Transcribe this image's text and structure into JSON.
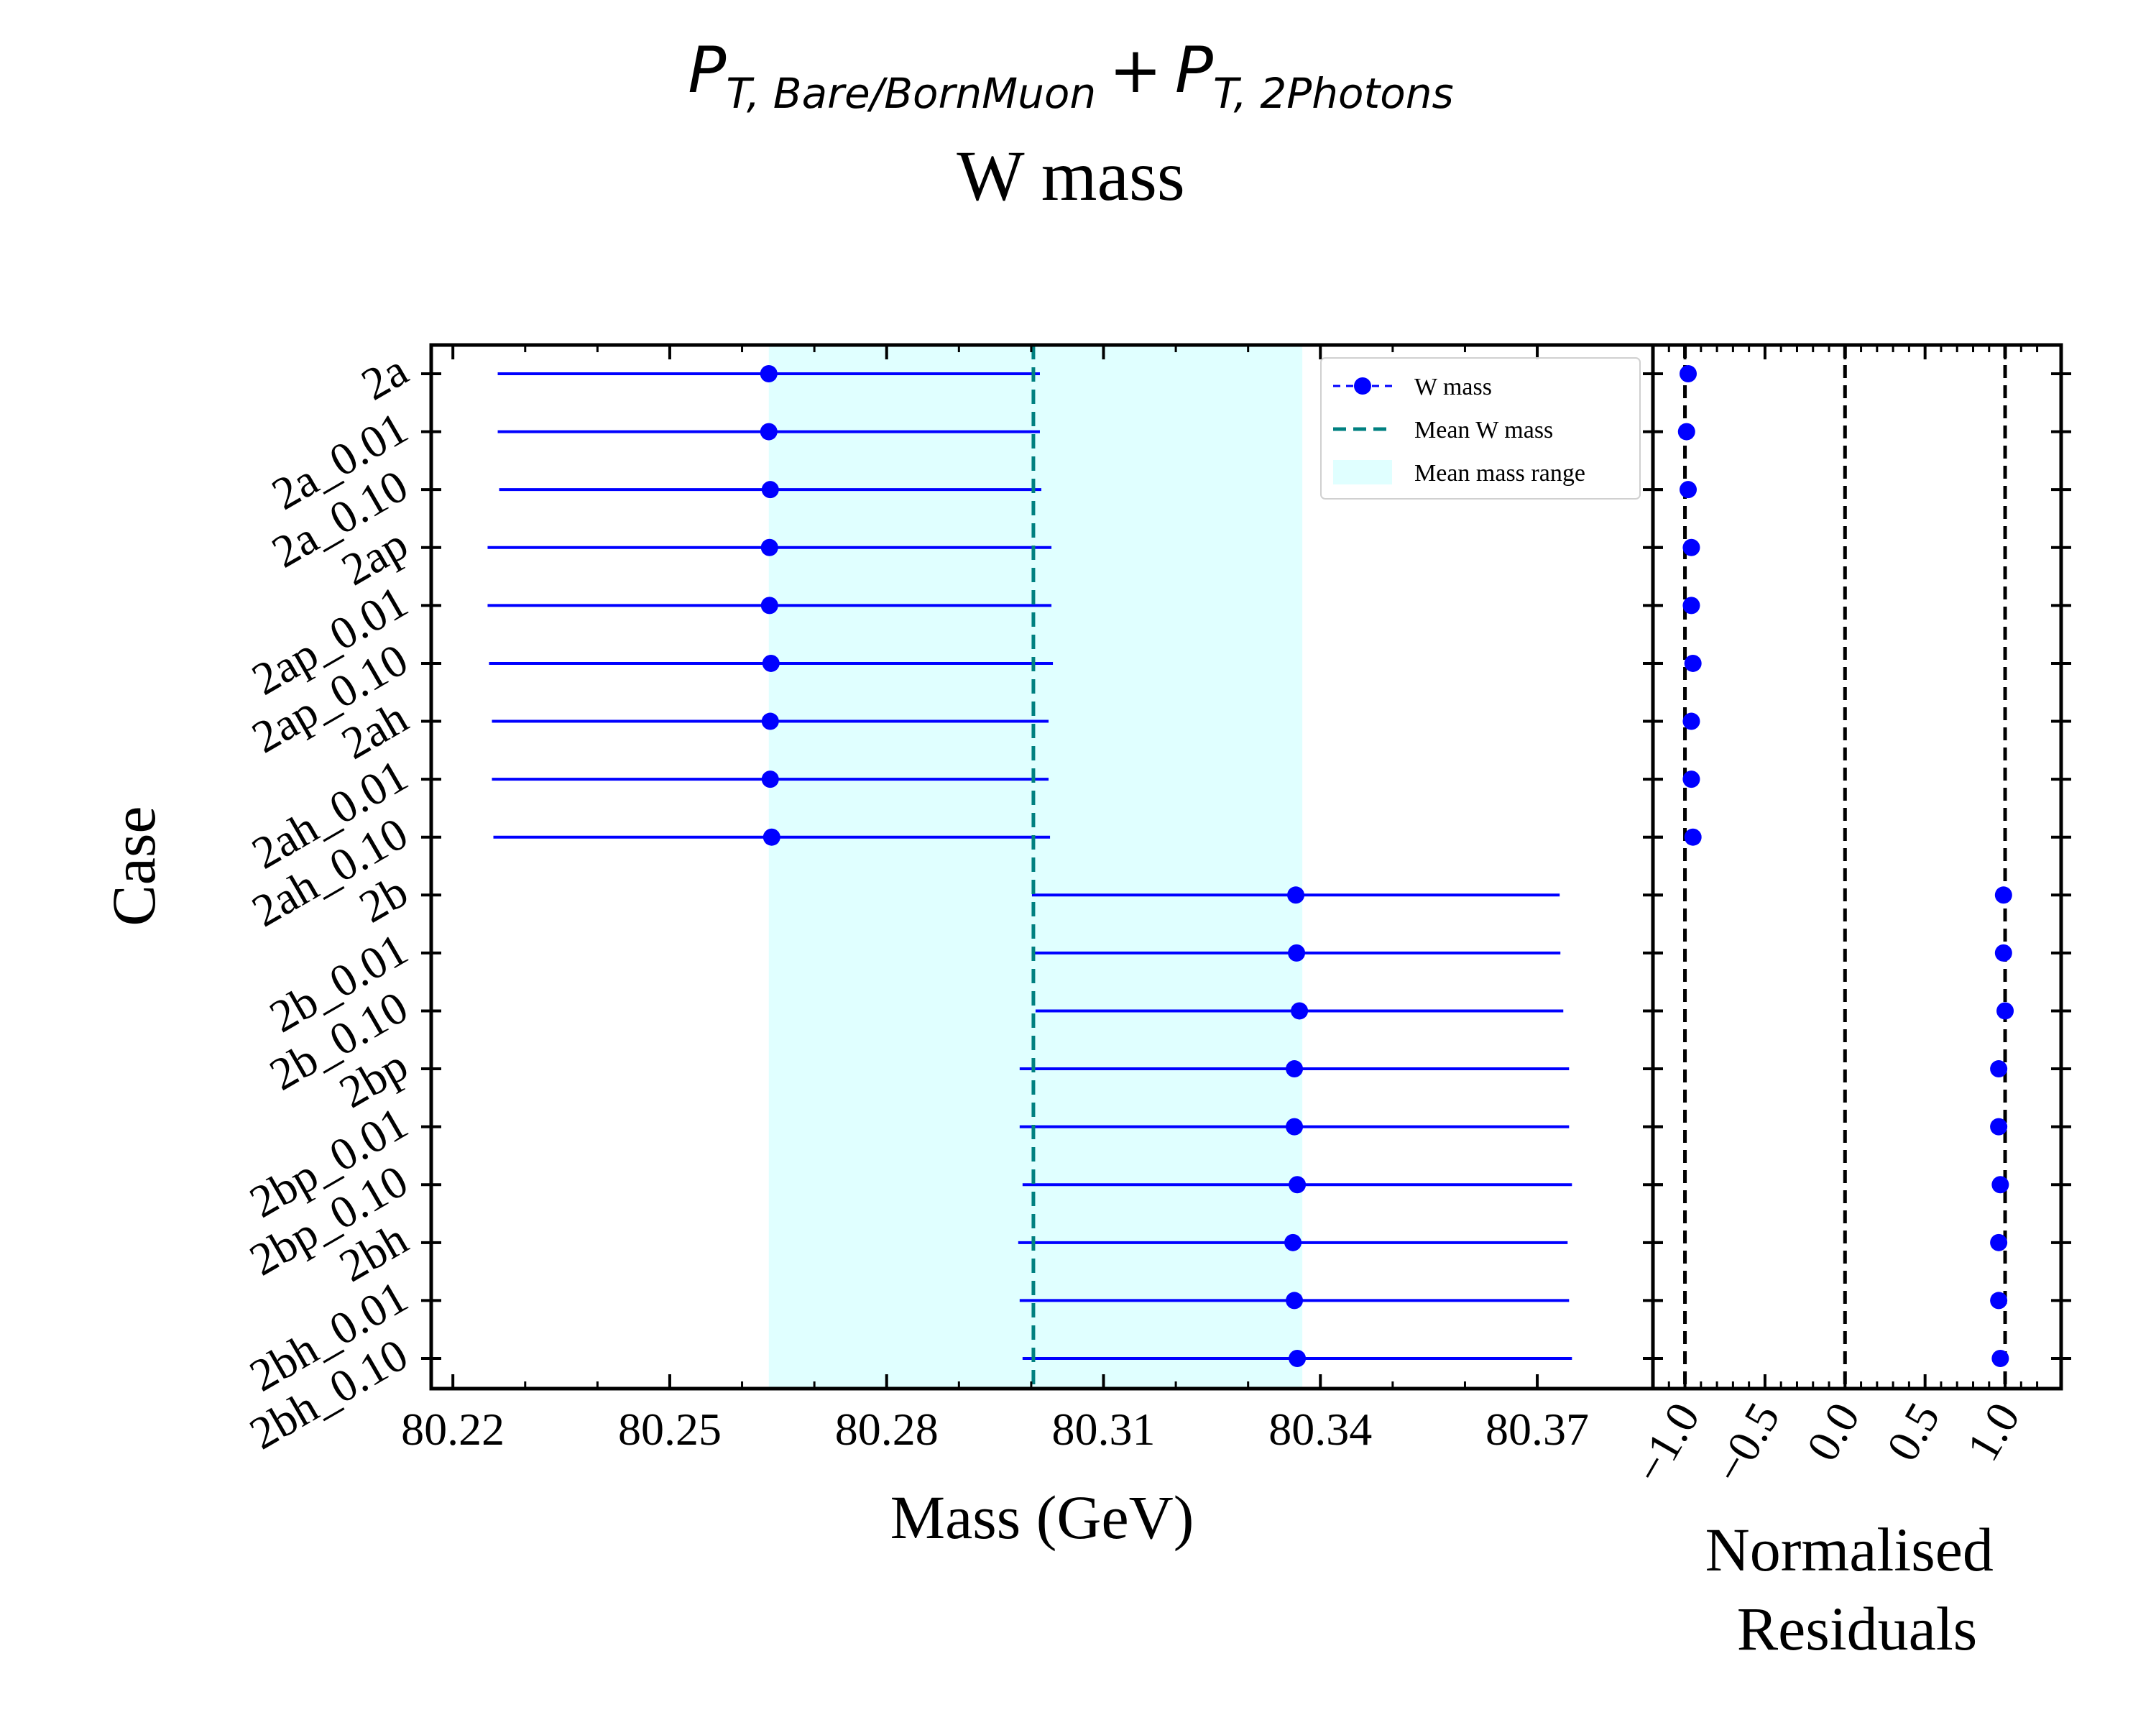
{
  "chart_data": [
    {
      "type": "scatter",
      "title": {
        "line1": {
          "term1": "P",
          "term1_sub": "T, Bare/BornMuon",
          "plus": "+",
          "term2": "P",
          "term2_sub": "T, 2Photons"
        },
        "line2": "W mass"
      },
      "xlabel": "Mass (GeV)",
      "ylabel": "Case",
      "xlim": [
        80.217,
        80.386
      ],
      "xticks": [
        80.22,
        80.25,
        80.28,
        80.31,
        80.34,
        80.37
      ],
      "xtick_labels": [
        "80.22",
        "80.25",
        "80.28",
        "80.31",
        "80.34",
        "80.37"
      ],
      "categories": [
        "2a",
        "2a_0.01",
        "2a_0.10",
        "2ap",
        "2ap_0.01",
        "2ap_0.10",
        "2ah",
        "2ah_0.01",
        "2ah_0.10",
        "2b",
        "2b_0.01",
        "2b_0.10",
        "2bp",
        "2bp_0.01",
        "2bp_0.10",
        "2bh",
        "2bh_0.01",
        "2bh_0.10"
      ],
      "series": [
        {
          "name": "W mass",
          "color": "#0000ff",
          "values": [
            80.2637,
            80.2637,
            80.2639,
            80.2638,
            80.2638,
            80.264,
            80.2639,
            80.2639,
            80.2641,
            80.3366,
            80.3367,
            80.3371,
            80.3364,
            80.3364,
            80.3368,
            80.3362,
            80.3364,
            80.3368
          ],
          "xerr": [
            0.0375,
            0.0375,
            0.0375,
            0.039,
            0.039,
            0.039,
            0.0385,
            0.0385,
            0.0385,
            0.0365,
            0.0365,
            0.0365,
            0.038,
            0.038,
            0.038,
            0.038,
            0.038,
            0.038
          ]
        }
      ],
      "mean_line": {
        "name": "Mean W mass",
        "value": 80.3003,
        "color": "#008080"
      },
      "mean_range": {
        "name": "Mean mass range",
        "range": [
          80.2637,
          80.3375
        ],
        "color": "#e0ffff"
      },
      "legend": {
        "placement": "top-right",
        "entries": [
          "W mass",
          "Mean W mass",
          "Mean mass range"
        ]
      }
    },
    {
      "type": "scatter",
      "xlabel": "Normalised\nResiduals",
      "xlabel_lines": [
        "Normalised",
        "Residuals"
      ],
      "xlim": [
        -1.2,
        1.35
      ],
      "xticks": [
        -1.0,
        -0.5,
        0.0,
        0.5,
        1.0
      ],
      "xtick_labels": [
        "−1.0",
        "−0.5",
        "0.0",
        "0.5",
        "1.0"
      ],
      "reference_lines": [
        -1.0,
        0.0,
        1.0
      ],
      "categories": [
        "2a",
        "2a_0.01",
        "2a_0.10",
        "2ap",
        "2ap_0.01",
        "2ap_0.10",
        "2ah",
        "2ah_0.01",
        "2ah_0.10",
        "2b",
        "2b_0.01",
        "2b_0.10",
        "2bp",
        "2bp_0.01",
        "2bp_0.10",
        "2bh",
        "2bh_0.01",
        "2bh_0.10"
      ],
      "series": [
        {
          "name": "W mass",
          "color": "#0000ff",
          "values": [
            -0.98,
            -0.99,
            -0.98,
            -0.96,
            -0.96,
            -0.95,
            -0.96,
            -0.96,
            -0.95,
            0.99,
            0.99,
            1.0,
            0.96,
            0.96,
            0.97,
            0.96,
            0.96,
            0.97
          ]
        }
      ]
    }
  ]
}
